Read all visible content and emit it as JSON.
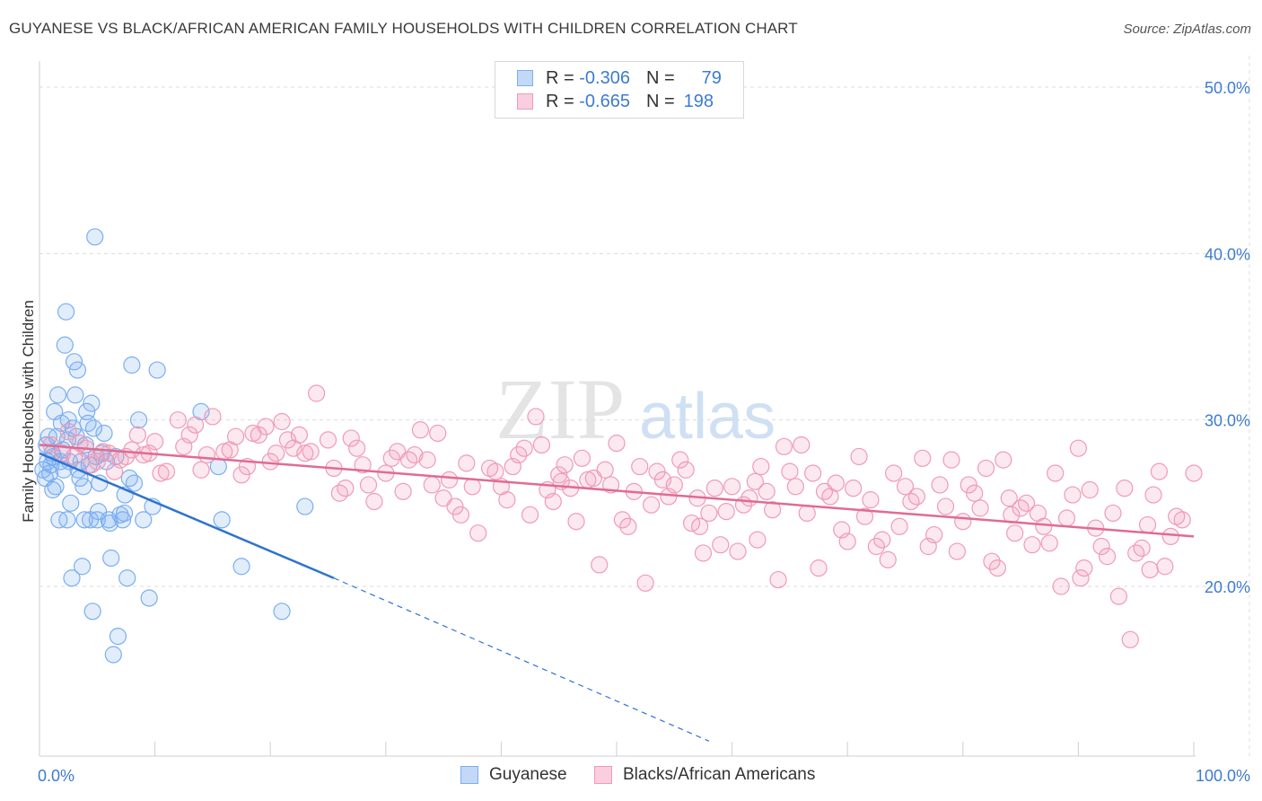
{
  "header": {
    "title": "GUYANESE VS BLACK/AFRICAN AMERICAN FAMILY HOUSEHOLDS WITH CHILDREN CORRELATION CHART",
    "source": "Source: ZipAtlas.com"
  },
  "watermark": {
    "zip": "ZIP",
    "atlas": "atlas"
  },
  "legend_top": {
    "rows": [
      {
        "r_label": "R =",
        "r_value": "-0.306",
        "n_label": "N =",
        "n_value": "79",
        "color": "#7aaef0"
      },
      {
        "r_label": "R =",
        "r_value": "-0.665",
        "n_label": "N =",
        "n_value": "198",
        "color": "#f09ab6"
      }
    ]
  },
  "legend_bottom": {
    "items": [
      {
        "label": "Guyanese",
        "color": "#7aaef0"
      },
      {
        "label": "Blacks/African Americans",
        "color": "#f09ab6"
      }
    ]
  },
  "chart_data": {
    "type": "scatter",
    "title": "GUYANESE VS BLACK/AFRICAN AMERICAN FAMILY HOUSEHOLDS WITH CHILDREN CORRELATION CHART",
    "xlabel": "",
    "ylabel": "Family Households with Children",
    "xlim": [
      0,
      100
    ],
    "ylim": [
      10,
      52
    ],
    "x_tick_labels": [
      "0.0%",
      "100.0%"
    ],
    "y_ticks": [
      20,
      30,
      40,
      50
    ],
    "y_tick_labels": [
      "20.0%",
      "30.0%",
      "40.0%",
      "50.0%"
    ],
    "grid": true,
    "legend_position": "bottom",
    "series": [
      {
        "name": "Guyanese",
        "color": "#7aaef0",
        "line_color": "#2f73d0",
        "trend": {
          "x_start": 0,
          "y_start": 28.0,
          "x_solid_end": 25.5,
          "y_solid_end": 20.5,
          "x_dash_end": 58,
          "y_dash_end": 10.7
        },
        "points": [
          [
            0.3,
            27.0
          ],
          [
            0.5,
            26.5
          ],
          [
            0.6,
            28.5
          ],
          [
            0.7,
            27.5
          ],
          [
            0.8,
            29.0
          ],
          [
            0.9,
            26.8
          ],
          [
            1.0,
            27.3
          ],
          [
            1.1,
            28.0
          ],
          [
            1.2,
            27.8
          ],
          [
            1.3,
            30.5
          ],
          [
            1.4,
            26.0
          ],
          [
            1.5,
            29.0
          ],
          [
            1.6,
            31.5
          ],
          [
            1.7,
            24.0
          ],
          [
            1.8,
            27.5
          ],
          [
            1.9,
            29.8
          ],
          [
            2.0,
            28.2
          ],
          [
            2.1,
            27.0
          ],
          [
            2.2,
            34.5
          ],
          [
            2.3,
            36.5
          ],
          [
            2.4,
            24.0
          ],
          [
            2.5,
            30.0
          ],
          [
            2.6,
            27.5
          ],
          [
            2.7,
            25.0
          ],
          [
            2.8,
            20.5
          ],
          [
            2.9,
            29.5
          ],
          [
            3.0,
            33.5
          ],
          [
            3.1,
            31.5
          ],
          [
            3.2,
            29.0
          ],
          [
            3.3,
            33.0
          ],
          [
            3.5,
            26.5
          ],
          [
            3.6,
            27.5
          ],
          [
            3.7,
            21.2
          ],
          [
            3.8,
            26.0
          ],
          [
            3.9,
            24.0
          ],
          [
            4.0,
            28.5
          ],
          [
            4.1,
            30.5
          ],
          [
            4.2,
            29.8
          ],
          [
            4.3,
            27.3
          ],
          [
            4.4,
            24.0
          ],
          [
            4.5,
            31.0
          ],
          [
            4.6,
            18.5
          ],
          [
            4.7,
            29.5
          ],
          [
            4.8,
            41.0
          ],
          [
            4.9,
            27.8
          ],
          [
            5.0,
            24.0
          ],
          [
            5.2,
            26.2
          ],
          [
            5.4,
            28.0
          ],
          [
            5.6,
            29.2
          ],
          [
            5.8,
            27.5
          ],
          [
            6.0,
            24.0
          ],
          [
            6.2,
            21.7
          ],
          [
            6.4,
            15.9
          ],
          [
            6.6,
            27.8
          ],
          [
            6.8,
            17.0
          ],
          [
            7.0,
            24.3
          ],
          [
            7.2,
            24.0
          ],
          [
            7.4,
            25.5
          ],
          [
            7.6,
            20.5
          ],
          [
            7.8,
            26.5
          ],
          [
            8.0,
            33.3
          ],
          [
            8.2,
            26.2
          ],
          [
            8.6,
            30.0
          ],
          [
            9.0,
            24.0
          ],
          [
            9.5,
            19.3
          ],
          [
            9.8,
            24.8
          ],
          [
            10.2,
            33.0
          ],
          [
            14.0,
            30.5
          ],
          [
            15.5,
            27.2
          ],
          [
            15.8,
            24.0
          ],
          [
            17.5,
            21.2
          ],
          [
            21.0,
            18.5
          ],
          [
            23.0,
            24.8
          ],
          [
            1.15,
            25.8
          ],
          [
            2.45,
            28.8
          ],
          [
            3.35,
            27.0
          ],
          [
            5.1,
            24.5
          ],
          [
            6.1,
            23.8
          ],
          [
            7.35,
            24.4
          ]
        ]
      },
      {
        "name": "Blacks/African Americans",
        "color": "#f09ab6",
        "line_color": "#e06b94",
        "trend": {
          "x_start": 0,
          "y_start": 28.5,
          "x_end": 100,
          "y_end": 23.0
        },
        "points": [
          [
            1,
            28.5
          ],
          [
            2,
            28.0
          ],
          [
            3,
            27.8
          ],
          [
            4,
            28.3
          ],
          [
            5,
            27.5
          ],
          [
            6,
            28.0
          ],
          [
            7,
            27.6
          ],
          [
            8,
            28.2
          ],
          [
            9,
            27.9
          ],
          [
            10,
            28.7
          ],
          [
            11,
            26.9
          ],
          [
            12,
            30.0
          ],
          [
            13,
            29.1
          ],
          [
            14,
            27.0
          ],
          [
            15,
            30.2
          ],
          [
            16,
            28.1
          ],
          [
            17,
            29.0
          ],
          [
            18,
            27.2
          ],
          [
            19,
            29.1
          ],
          [
            20,
            27.5
          ],
          [
            21,
            29.9
          ],
          [
            22,
            28.3
          ],
          [
            23,
            28.0
          ],
          [
            24,
            31.6
          ],
          [
            25,
            28.8
          ],
          [
            26,
            25.6
          ],
          [
            27,
            28.9
          ],
          [
            28,
            27.3
          ],
          [
            29,
            25.1
          ],
          [
            30,
            26.8
          ],
          [
            31,
            28.1
          ],
          [
            32,
            27.6
          ],
          [
            33,
            29.4
          ],
          [
            34,
            26.1
          ],
          [
            35,
            25.3
          ],
          [
            36,
            24.8
          ],
          [
            37,
            27.4
          ],
          [
            38,
            23.2
          ],
          [
            39,
            27.1
          ],
          [
            40,
            26.0
          ],
          [
            41,
            27.2
          ],
          [
            42,
            28.3
          ],
          [
            43,
            30.2
          ],
          [
            44,
            25.8
          ],
          [
            45,
            26.7
          ],
          [
            46,
            25.9
          ],
          [
            47,
            27.7
          ],
          [
            48,
            26.5
          ],
          [
            49,
            27.0
          ],
          [
            50,
            28.6
          ],
          [
            51,
            23.6
          ],
          [
            52,
            27.2
          ],
          [
            53,
            24.9
          ],
          [
            54,
            26.4
          ],
          [
            55,
            26.1
          ],
          [
            56,
            27.0
          ],
          [
            57,
            25.3
          ],
          [
            58,
            24.4
          ],
          [
            59,
            22.5
          ],
          [
            60,
            26.0
          ],
          [
            61,
            24.9
          ],
          [
            62,
            26.3
          ],
          [
            63,
            25.7
          ],
          [
            64,
            20.4
          ],
          [
            65,
            26.9
          ],
          [
            66,
            28.5
          ],
          [
            67,
            26.8
          ],
          [
            68,
            25.7
          ],
          [
            69,
            26.2
          ],
          [
            70,
            22.7
          ],
          [
            71,
            27.8
          ],
          [
            72,
            25.2
          ],
          [
            73,
            22.8
          ],
          [
            74,
            26.8
          ],
          [
            75,
            26.0
          ],
          [
            76,
            25.4
          ],
          [
            77,
            22.4
          ],
          [
            78,
            26.1
          ],
          [
            79,
            27.6
          ],
          [
            80,
            23.9
          ],
          [
            81,
            25.6
          ],
          [
            82,
            27.1
          ],
          [
            83,
            21.1
          ],
          [
            84,
            25.3
          ],
          [
            85,
            24.7
          ],
          [
            86,
            22.5
          ],
          [
            87,
            23.6
          ],
          [
            88,
            26.8
          ],
          [
            89,
            24.1
          ],
          [
            90,
            28.3
          ],
          [
            91,
            25.8
          ],
          [
            92,
            22.4
          ],
          [
            93,
            24.4
          ],
          [
            94,
            25.9
          ],
          [
            95,
            22.0
          ],
          [
            96,
            23.7
          ],
          [
            97,
            26.9
          ],
          [
            98,
            23.0
          ],
          [
            99,
            24.0
          ],
          [
            100,
            26.8
          ],
          [
            2.5,
            29.3
          ],
          [
            3.5,
            28.6
          ],
          [
            4.5,
            27.3
          ],
          [
            5.5,
            28.1
          ],
          [
            6.5,
            26.9
          ],
          [
            7.5,
            27.8
          ],
          [
            8.5,
            29.1
          ],
          [
            9.5,
            28.0
          ],
          [
            10.5,
            26.8
          ],
          [
            12.5,
            28.4
          ],
          [
            13.5,
            29.7
          ],
          [
            14.5,
            27.9
          ],
          [
            16.5,
            28.2
          ],
          [
            17.5,
            26.7
          ],
          [
            18.5,
            29.2
          ],
          [
            20.5,
            28.0
          ],
          [
            21.5,
            28.8
          ],
          [
            22.5,
            29.1
          ],
          [
            23.5,
            28.1
          ],
          [
            25.5,
            27.1
          ],
          [
            26.5,
            25.9
          ],
          [
            27.5,
            28.3
          ],
          [
            28.5,
            26.1
          ],
          [
            30.5,
            27.7
          ],
          [
            31.5,
            25.7
          ],
          [
            32.5,
            27.9
          ],
          [
            34.5,
            29.2
          ],
          [
            35.5,
            26.4
          ],
          [
            36.5,
            24.3
          ],
          [
            37.5,
            26.0
          ],
          [
            39.5,
            26.9
          ],
          [
            40.5,
            25.2
          ],
          [
            41.5,
            27.9
          ],
          [
            42.5,
            24.3
          ],
          [
            43.5,
            28.5
          ],
          [
            44.5,
            25.1
          ],
          [
            45.5,
            27.3
          ],
          [
            46.5,
            23.9
          ],
          [
            47.5,
            26.4
          ],
          [
            48.5,
            21.3
          ],
          [
            49.5,
            26.1
          ],
          [
            50.5,
            24.0
          ],
          [
            51.5,
            25.7
          ],
          [
            52.5,
            20.2
          ],
          [
            53.5,
            26.9
          ],
          [
            54.5,
            25.4
          ],
          [
            55.5,
            27.6
          ],
          [
            56.5,
            23.8
          ],
          [
            57.5,
            22.0
          ],
          [
            58.5,
            25.9
          ],
          [
            59.5,
            24.5
          ],
          [
            60.5,
            22.1
          ],
          [
            61.5,
            25.3
          ],
          [
            62.5,
            27.2
          ],
          [
            63.5,
            24.6
          ],
          [
            64.5,
            28.4
          ],
          [
            65.5,
            26.0
          ],
          [
            66.5,
            24.4
          ],
          [
            67.5,
            21.1
          ],
          [
            68.5,
            25.4
          ],
          [
            69.5,
            23.4
          ],
          [
            70.5,
            25.9
          ],
          [
            71.5,
            24.2
          ],
          [
            72.5,
            22.4
          ],
          [
            73.5,
            21.6
          ],
          [
            74.5,
            23.6
          ],
          [
            75.5,
            25.1
          ],
          [
            76.5,
            27.7
          ],
          [
            77.5,
            23.1
          ],
          [
            78.5,
            24.8
          ],
          [
            79.5,
            22.1
          ],
          [
            80.5,
            26.1
          ],
          [
            81.5,
            24.7
          ],
          [
            82.5,
            21.5
          ],
          [
            83.5,
            27.6
          ],
          [
            84.5,
            23.2
          ],
          [
            85.5,
            25.0
          ],
          [
            86.5,
            24.4
          ],
          [
            87.5,
            22.6
          ],
          [
            88.5,
            20.0
          ],
          [
            89.5,
            25.5
          ],
          [
            90.5,
            21.1
          ],
          [
            91.5,
            23.5
          ],
          [
            92.5,
            21.8
          ],
          [
            93.5,
            19.4
          ],
          [
            94.5,
            16.8
          ],
          [
            95.5,
            22.3
          ],
          [
            96.5,
            25.5
          ],
          [
            97.5,
            21.2
          ],
          [
            98.5,
            24.2
          ],
          [
            19.6,
            29.6
          ],
          [
            33.6,
            27.6
          ],
          [
            45.2,
            26.3
          ],
          [
            57.2,
            23.6
          ],
          [
            62.2,
            22.8
          ],
          [
            84.2,
            24.3
          ],
          [
            90.2,
            20.5
          ],
          [
            96.2,
            21.0
          ]
        ]
      }
    ]
  }
}
